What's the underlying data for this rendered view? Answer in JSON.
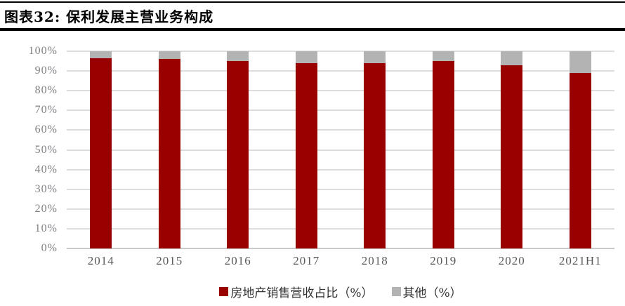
{
  "figure": {
    "title": "图表32: 保利发展主营业务构成"
  },
  "chart_data": {
    "type": "bar",
    "stacked": true,
    "title": "图表32: 保利发展主营业务构成",
    "categories": [
      "2014",
      "2015",
      "2016",
      "2017",
      "2018",
      "2019",
      "2020",
      "2021H1"
    ],
    "series": [
      {
        "name": "房地产销售营收占比（%）",
        "color": "#990000",
        "values": [
          96.5,
          96.1,
          95.2,
          93.8,
          94.0,
          95.0,
          93.0,
          88.8
        ]
      },
      {
        "name": "其他（%）",
        "color": "#b3b3b3",
        "values": [
          3.5,
          3.9,
          4.8,
          6.2,
          6.0,
          5.0,
          7.0,
          11.2
        ]
      }
    ],
    "ylim": [
      0,
      100
    ],
    "ytick_step": 10,
    "ytick_suffix": "%",
    "ytick_labels": [
      "0%",
      "10%",
      "20%",
      "30%",
      "40%",
      "50%",
      "60%",
      "70%",
      "80%",
      "90%",
      "100%"
    ],
    "grid": true,
    "gridline_color": "#dddddd",
    "axis_label_color": "#7f8084",
    "xtick_label_color": "#595959",
    "legend_position": "bottom",
    "legend": [
      "房地产销售营收占比（%）",
      "其他（%）"
    ]
  }
}
